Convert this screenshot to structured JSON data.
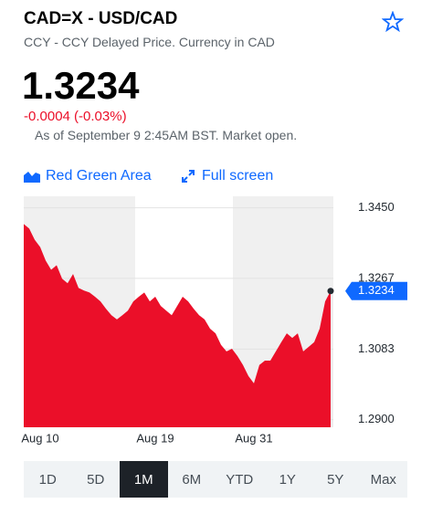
{
  "header": {
    "title": "CAD=X - USD/CAD",
    "subtitle": "CCY - CCY Delayed Price. Currency in CAD",
    "price": "1.3234",
    "change": "-0.0004 (-0.03%)",
    "as_of": "As of September 9 2:45AM BST. Market open."
  },
  "toolbar": {
    "chart_style": "Red Green Area",
    "fullscreen": "Full screen"
  },
  "chart_data": {
    "type": "area",
    "color": "#eb0f29",
    "categories": [
      null,
      null,
      null,
      "Aug 10",
      null,
      null,
      null,
      null,
      null,
      null,
      null,
      null,
      null,
      null,
      null,
      null,
      null,
      null,
      null,
      null,
      null,
      null,
      null,
      null,
      "Aug 19",
      null,
      null,
      null,
      null,
      null,
      null,
      null,
      null,
      null,
      null,
      null,
      null,
      null,
      null,
      null,
      null,
      null,
      "Aug 31",
      null,
      null,
      null,
      null,
      null,
      null,
      null,
      null,
      null,
      null,
      null,
      null,
      null,
      null
    ],
    "values": [
      1.3408,
      1.3396,
      1.3367,
      1.3348,
      1.3313,
      1.3289,
      1.3301,
      1.3266,
      1.3254,
      1.3278,
      1.3242,
      1.3235,
      1.323,
      1.3219,
      1.3207,
      1.3188,
      1.3171,
      1.316,
      1.3171,
      1.3183,
      1.3207,
      1.3219,
      1.323,
      1.3207,
      1.3219,
      1.3195,
      1.3183,
      1.3171,
      1.3195,
      1.3219,
      1.3207,
      1.3188,
      1.3171,
      1.316,
      1.3136,
      1.3124,
      1.3094,
      1.3077,
      1.3084,
      1.3065,
      1.3042,
      1.3013,
      1.2994,
      1.3042,
      1.3053,
      1.3053,
      1.3077,
      1.3101,
      1.3124,
      1.3112,
      1.3124,
      1.3077,
      1.3089,
      1.3101,
      1.3136,
      1.3207,
      1.3234
    ],
    "ylim": [
      1.288,
      1.348
    ],
    "yticks": [
      {
        "value": 1.29,
        "label": "1.2900"
      },
      1.3083,
      1.3267,
      {
        "value": 1.345,
        "label": "1.3450"
      }
    ],
    "grid": true
  },
  "ranges": [
    "1D",
    "5D",
    "1M",
    "6M",
    "YTD",
    "1Y",
    "5Y",
    "Max"
  ],
  "selected_range": "1M"
}
